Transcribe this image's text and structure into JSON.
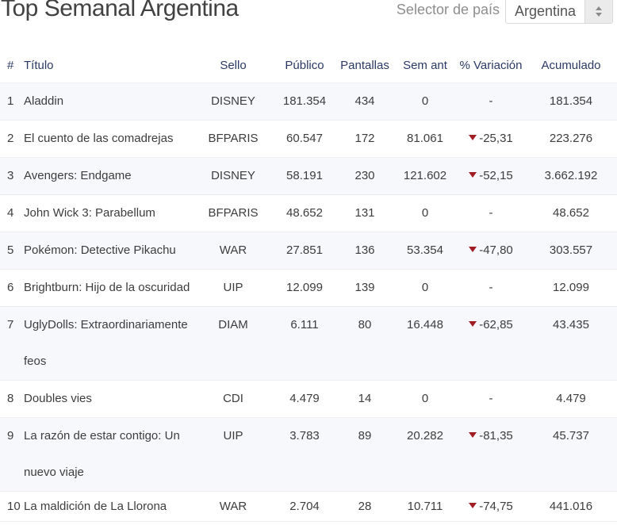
{
  "page": {
    "title": "Top Semanal Argentina"
  },
  "selector": {
    "label": "Selector de país",
    "value": "Argentina"
  },
  "table": {
    "columns": [
      "#",
      "Título",
      "Sello",
      "Público",
      "Pantallas",
      "Sem ant",
      "% Variación",
      "Acumulado"
    ],
    "rows": [
      {
        "rank": "1",
        "title": "Aladdin",
        "sello": "DISNEY",
        "publico": "181.354",
        "pantallas": "434",
        "sem_ant": "0",
        "variacion": "-",
        "variacion_down": false,
        "acumulado": "181.354"
      },
      {
        "rank": "2",
        "title": "El cuento de las comadrejas",
        "sello": "BFPARIS",
        "publico": "60.547",
        "pantallas": "172",
        "sem_ant": "81.061",
        "variacion": "-25,31",
        "variacion_down": true,
        "acumulado": "223.276"
      },
      {
        "rank": "3",
        "title": "Avengers: Endgame",
        "sello": "DISNEY",
        "publico": "58.191",
        "pantallas": "230",
        "sem_ant": "121.602",
        "variacion": "-52,15",
        "variacion_down": true,
        "acumulado": "3.662.192"
      },
      {
        "rank": "4",
        "title": "John Wick 3: Parabellum",
        "sello": "BFPARIS",
        "publico": "48.652",
        "pantallas": "131",
        "sem_ant": "0",
        "variacion": "-",
        "variacion_down": false,
        "acumulado": "48.652"
      },
      {
        "rank": "5",
        "title": "Pokémon: Detective Pikachu",
        "sello": "WAR",
        "publico": "27.851",
        "pantallas": "136",
        "sem_ant": "53.354",
        "variacion": "-47,80",
        "variacion_down": true,
        "acumulado": "303.557"
      },
      {
        "rank": "6",
        "title": "Brightburn: Hijo de la oscuridad",
        "sello": "UIP",
        "publico": "12.099",
        "pantallas": "139",
        "sem_ant": "0",
        "variacion": "-",
        "variacion_down": false,
        "acumulado": "12.099"
      },
      {
        "rank": "7",
        "title": "UglyDolls: Extraordinariamente feos",
        "sello": "DIAM",
        "publico": "6.111",
        "pantallas": "80",
        "sem_ant": "16.448",
        "variacion": "-62,85",
        "variacion_down": true,
        "acumulado": "43.435"
      },
      {
        "rank": "8",
        "title": "Doubles vies",
        "sello": "CDI",
        "publico": "4.479",
        "pantallas": "14",
        "sem_ant": "0",
        "variacion": "-",
        "variacion_down": false,
        "acumulado": "4.479"
      },
      {
        "rank": "9",
        "title": "La razón de estar contigo: Un nuevo viaje",
        "sello": "UIP",
        "publico": "3.783",
        "pantallas": "89",
        "sem_ant": "20.282",
        "variacion": "-81,35",
        "variacion_down": true,
        "acumulado": "45.737"
      },
      {
        "rank": "10",
        "title": "La maldición de La Llorona",
        "sello": "WAR",
        "publico": "2.704",
        "pantallas": "28",
        "sem_ant": "10.711",
        "variacion": "-74,75",
        "variacion_down": true,
        "acumulado": "441.016"
      }
    ]
  },
  "colors": {
    "title_text": "#424242",
    "header_text": "#2b3a64",
    "body_text": "#3d3d3d",
    "stripe": "#f7f8fb",
    "row_border": "#ededf0",
    "decline_red": "#a01d23",
    "selector_label": "#8e8e8e",
    "select_text": "#555555",
    "select_border": "#d9d9d9",
    "stepper_bg": "#ebebeb",
    "stepper_arrow": "#8a8a8a"
  }
}
